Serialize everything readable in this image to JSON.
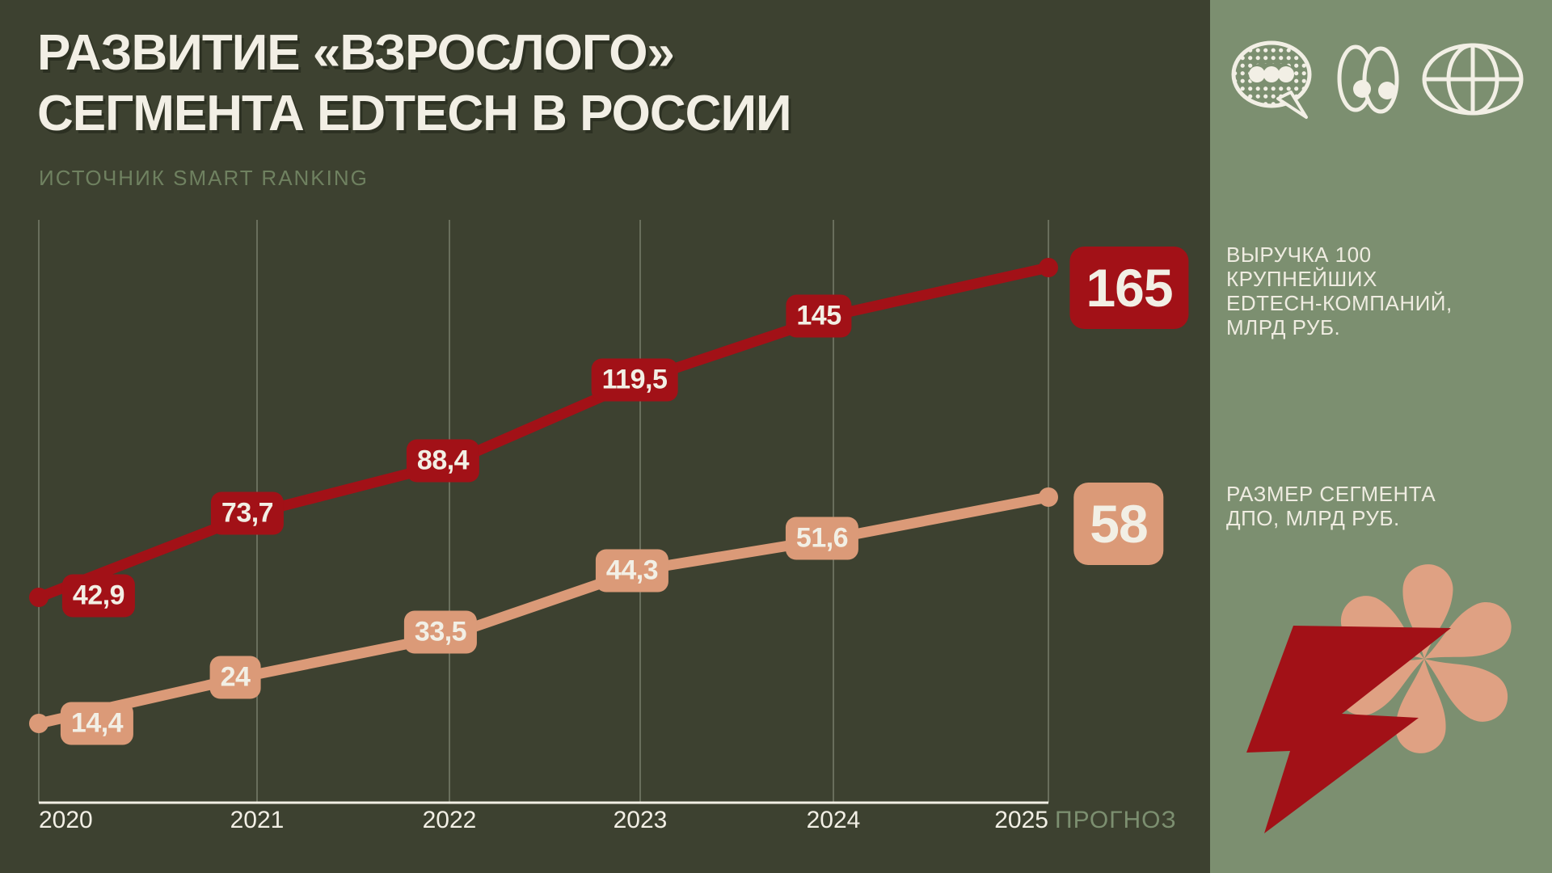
{
  "header": {
    "title_line1": "РАЗВИТИЕ  «ВЗРОСЛОГО»",
    "title_line2": "СЕГМЕНТА EDTECH В РОССИИ",
    "source": "ИСТОЧНИК SMART RANKING"
  },
  "sidebar": {
    "icons": [
      "speech-bubble-icon",
      "eyes-icon",
      "globe-icon"
    ],
    "legend_revenue_lines": [
      "ВЫРУЧКА 100",
      "КРУПНЕЙШИХ",
      "EDTECH-КОМПАНИЙ,",
      "МЛРД РУБ."
    ],
    "legend_dpo_lines": [
      "РАЗМЕР СЕГМЕНТА",
      "ДПО, МЛРД РУБ."
    ]
  },
  "chart_data": {
    "type": "line",
    "title": "Развитие «взрослого» сегмента EdTech в России",
    "source": "Smart Ranking",
    "x": [
      2020,
      2021,
      2022,
      2023,
      2024,
      2025
    ],
    "x_tick_labels": [
      "2020",
      "2021",
      "2022",
      "2023",
      "2024",
      "2025"
    ],
    "x_suffix_label": "ПРОГНОЗ",
    "grid": "vertical-only",
    "legend_position": "right-sidebar",
    "series": [
      {
        "name": "Выручка 100 крупнейших EdTech-компаний, млрд руб.",
        "color": "#a21117",
        "values": [
          42.9,
          73.7,
          88.4,
          119.5,
          145,
          165
        ],
        "labels": [
          "42,9",
          "73,7",
          "88,4",
          "119,5",
          "145",
          "165"
        ]
      },
      {
        "name": "Размер сегмента ДПО, млрд руб.",
        "color": "#db9a78",
        "values": [
          14.4,
          24,
          33.5,
          44.3,
          51.6,
          58
        ],
        "labels": [
          "14,4",
          "24",
          "33,5",
          "44,3",
          "51,6",
          "58"
        ]
      }
    ]
  },
  "colors": {
    "background": "#3d4130",
    "sidebar": "#7c8f70",
    "red": "#a21117",
    "salmon": "#db9a78",
    "salmon_light": "#dfa183",
    "cream": "#f2efe5",
    "muted_green": "#6f8160",
    "gridline": "#696e5c"
  }
}
